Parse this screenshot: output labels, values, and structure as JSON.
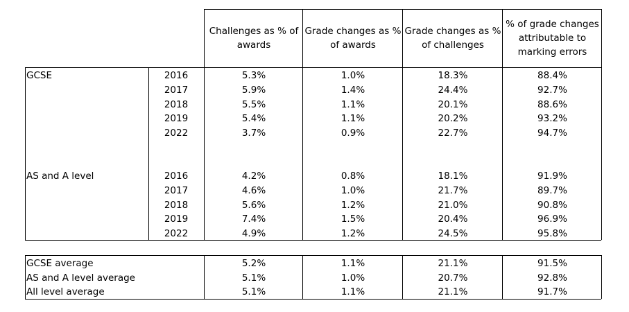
{
  "headers": [
    "Challenges as % of awards",
    "Grade changes as % of awards",
    "Grade changes as % of challenges",
    "% of grade changes attributable to marking errors"
  ],
  "groups": [
    {
      "label": "GCSE",
      "rows": [
        {
          "year": "2016",
          "values": [
            "5.3%",
            "1.0%",
            "18.3%",
            "88.4%"
          ]
        },
        {
          "year": "2017",
          "values": [
            "5.9%",
            "1.4%",
            "24.4%",
            "92.7%"
          ]
        },
        {
          "year": "2018",
          "values": [
            "5.5%",
            "1.1%",
            "20.1%",
            "88.6%"
          ]
        },
        {
          "year": "2019",
          "values": [
            "5.4%",
            "1.1%",
            "20.2%",
            "93.2%"
          ]
        },
        {
          "year": "2022",
          "values": [
            "3.7%",
            "0.9%",
            "22.7%",
            "94.7%"
          ]
        }
      ]
    },
    {
      "label": "AS and A level",
      "rows": [
        {
          "year": "2016",
          "values": [
            "4.2%",
            "0.8%",
            "18.1%",
            "91.9%"
          ]
        },
        {
          "year": "2017",
          "values": [
            "4.6%",
            "1.0%",
            "21.7%",
            "89.7%"
          ]
        },
        {
          "year": "2018",
          "values": [
            "5.6%",
            "1.2%",
            "21.0%",
            "90.8%"
          ]
        },
        {
          "year": "2019",
          "values": [
            "7.4%",
            "1.5%",
            "20.4%",
            "96.9%"
          ]
        },
        {
          "year": "2022",
          "values": [
            "4.9%",
            "1.2%",
            "24.5%",
            "95.8%"
          ]
        }
      ]
    }
  ],
  "averages": [
    {
      "label": "GCSE average",
      "values": [
        "5.2%",
        "1.1%",
        "21.1%",
        "91.5%"
      ]
    },
    {
      "label": "AS and A level average",
      "values": [
        "5.1%",
        "1.0%",
        "20.7%",
        "92.8%"
      ]
    },
    {
      "label": "All level average",
      "values": [
        "5.1%",
        "1.1%",
        "21.1%",
        "91.7%"
      ]
    }
  ]
}
